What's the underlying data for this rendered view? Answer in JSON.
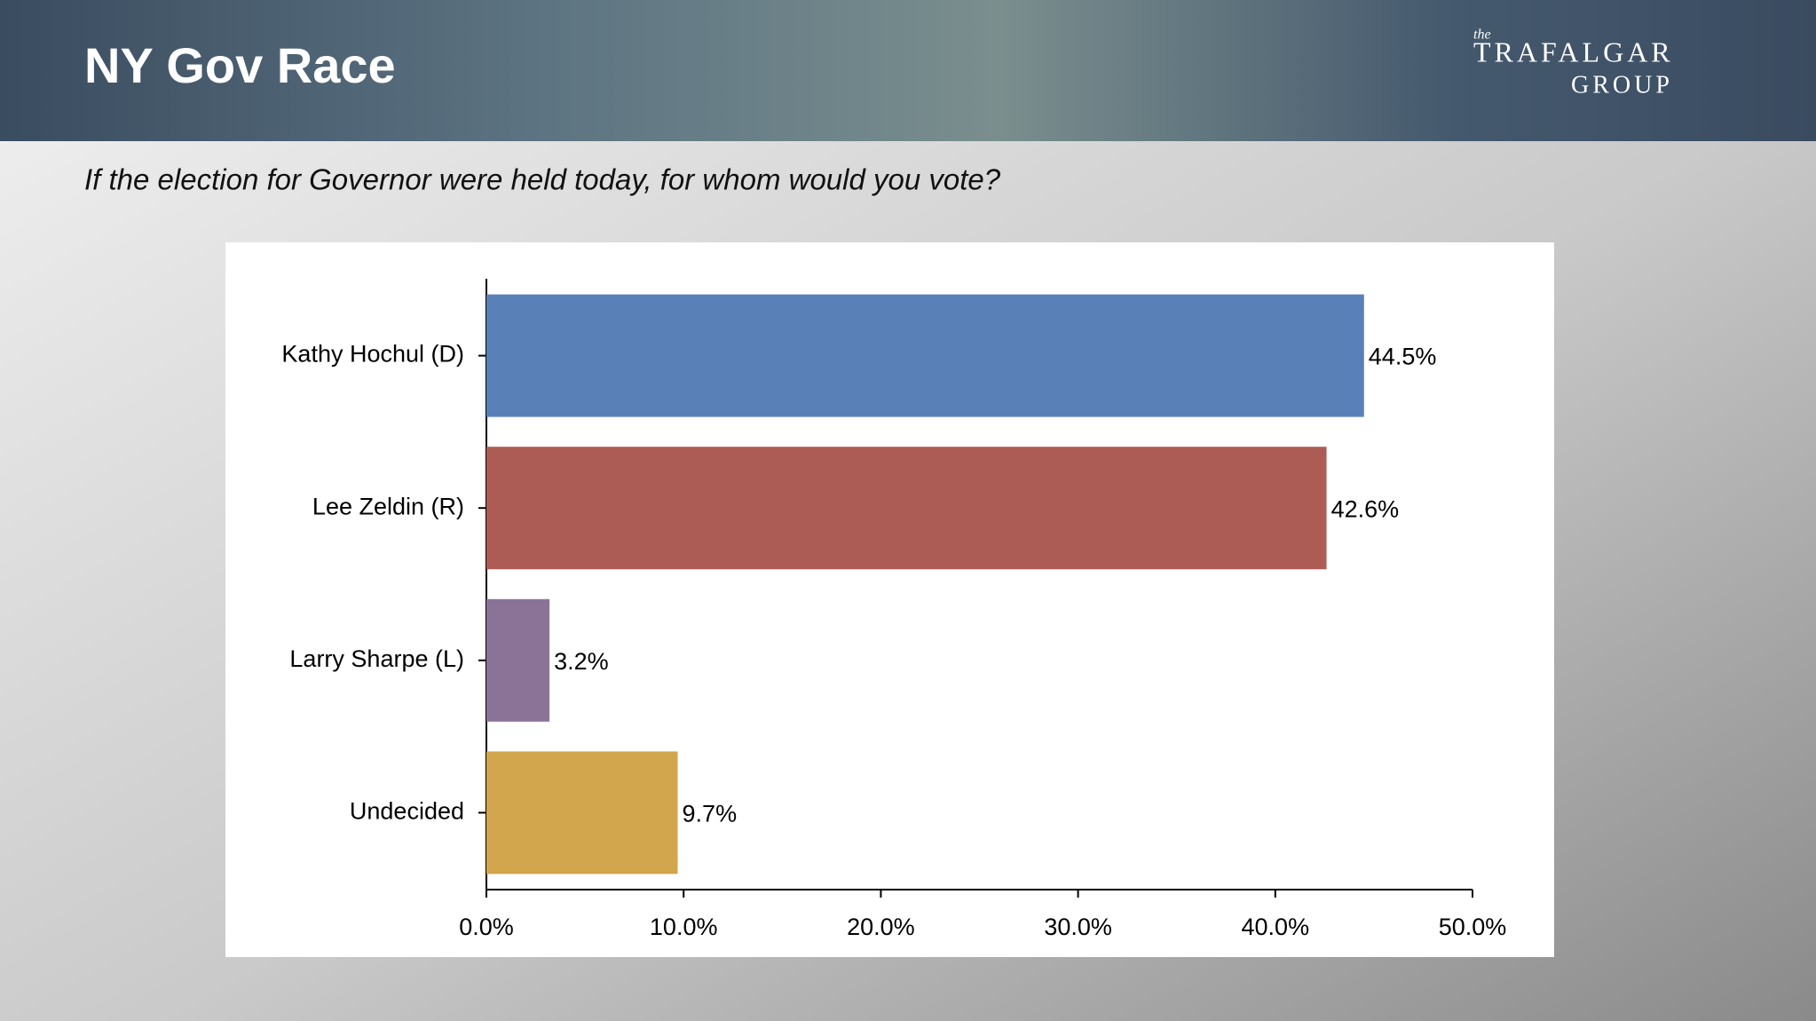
{
  "logo": {
    "small": "the",
    "name": "TRAFALGAR",
    "name2": "GROUP"
  },
  "chart_data": {
    "type": "bar",
    "orientation": "horizontal",
    "title": "NY Gov Race",
    "subtitle": "If the election for Governor were held today, for whom would you vote?",
    "categories": [
      "Kathy Hochul (D)",
      "Lee Zeldin (R)",
      "Larry Sharpe (L)",
      "Undecided"
    ],
    "values": [
      44.5,
      42.6,
      3.2,
      9.7
    ],
    "value_labels": [
      "44.5%",
      "42.6%",
      "3.2%",
      "9.7%"
    ],
    "colors": [
      "#5a80b8",
      "#ad5c55",
      "#8b7398",
      "#d2a64d"
    ],
    "xlim": [
      0,
      50
    ],
    "xticks": [
      {
        "value": 0,
        "label": "0.0%"
      },
      {
        "value": 10,
        "label": "10.0%"
      },
      {
        "value": 20,
        "label": "20.0%"
      },
      {
        "value": 30,
        "label": "30.0%"
      },
      {
        "value": 40,
        "label": "40.0%"
      },
      {
        "value": 50,
        "label": "50.0%"
      }
    ]
  }
}
